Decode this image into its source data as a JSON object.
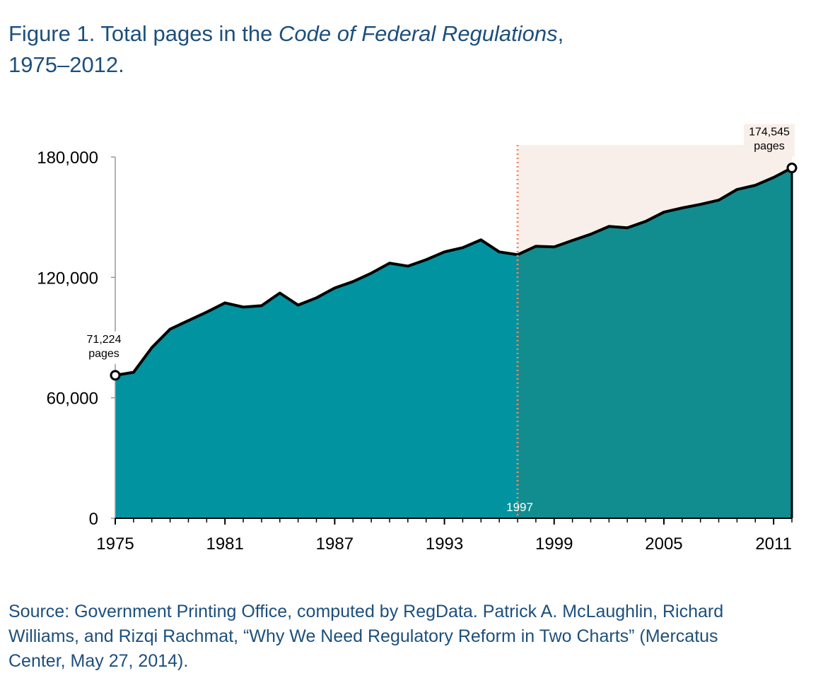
{
  "chart_data": {
    "type": "area",
    "title_parts": [
      "Figure 1. Total pages in the ",
      "Code of Federal Regulations",
      ",",
      "1975–2012."
    ],
    "source": "Source: Government Printing Office, computed by RegData. Patrick A. McLaughlin, Richard Williams, and Rizqi Rachmat, “Why We Need Regulatory Reform in Two Charts” (Mercatus Center, May 27, 2014).",
    "x": [
      1975,
      1976,
      1977,
      1978,
      1979,
      1980,
      1981,
      1982,
      1983,
      1984,
      1985,
      1986,
      1987,
      1988,
      1989,
      1990,
      1991,
      1992,
      1993,
      1994,
      1995,
      1996,
      1997,
      1998,
      1999,
      2000,
      2001,
      2002,
      2003,
      2004,
      2005,
      2006,
      2007,
      2008,
      2009,
      2010,
      2011,
      2012
    ],
    "values": [
      71224,
      72700,
      85000,
      94200,
      98500,
      102700,
      107300,
      105200,
      105900,
      112200,
      106200,
      109800,
      114700,
      117900,
      122100,
      127100,
      125600,
      128800,
      132700,
      134800,
      138700,
      132700,
      131300,
      135500,
      135200,
      138400,
      141500,
      145400,
      144700,
      147900,
      152500,
      154600,
      156400,
      158500,
      163800,
      165900,
      169800,
      174545
    ],
    "value_labels": [
      "71,224",
      null,
      null,
      null,
      null,
      null,
      null,
      null,
      null,
      null,
      null,
      null,
      null,
      null,
      null,
      null,
      null,
      null,
      null,
      null,
      null,
      null,
      null,
      null,
      null,
      null,
      null,
      null,
      null,
      null,
      null,
      null,
      null,
      null,
      null,
      null,
      null,
      "174,545"
    ],
    "unit_label": "pages",
    "highlight_start": 1997,
    "colors": {
      "before": "#01939f",
      "after": "#118c8f",
      "highlight": "#f9efea",
      "marker_line": "#ef8a68"
    },
    "xlim": [
      1975,
      2012
    ],
    "ylim": [
      0,
      186000
    ],
    "xticks": [
      1975,
      1981,
      1987,
      1993,
      1999,
      2005,
      2011
    ],
    "yticks": [
      0,
      {
        "value": 60000,
        "label": "60,000"
      },
      {
        "value": 120000,
        "label": "120,000"
      },
      {
        "value": 180000,
        "label": "180,000"
      }
    ]
  }
}
